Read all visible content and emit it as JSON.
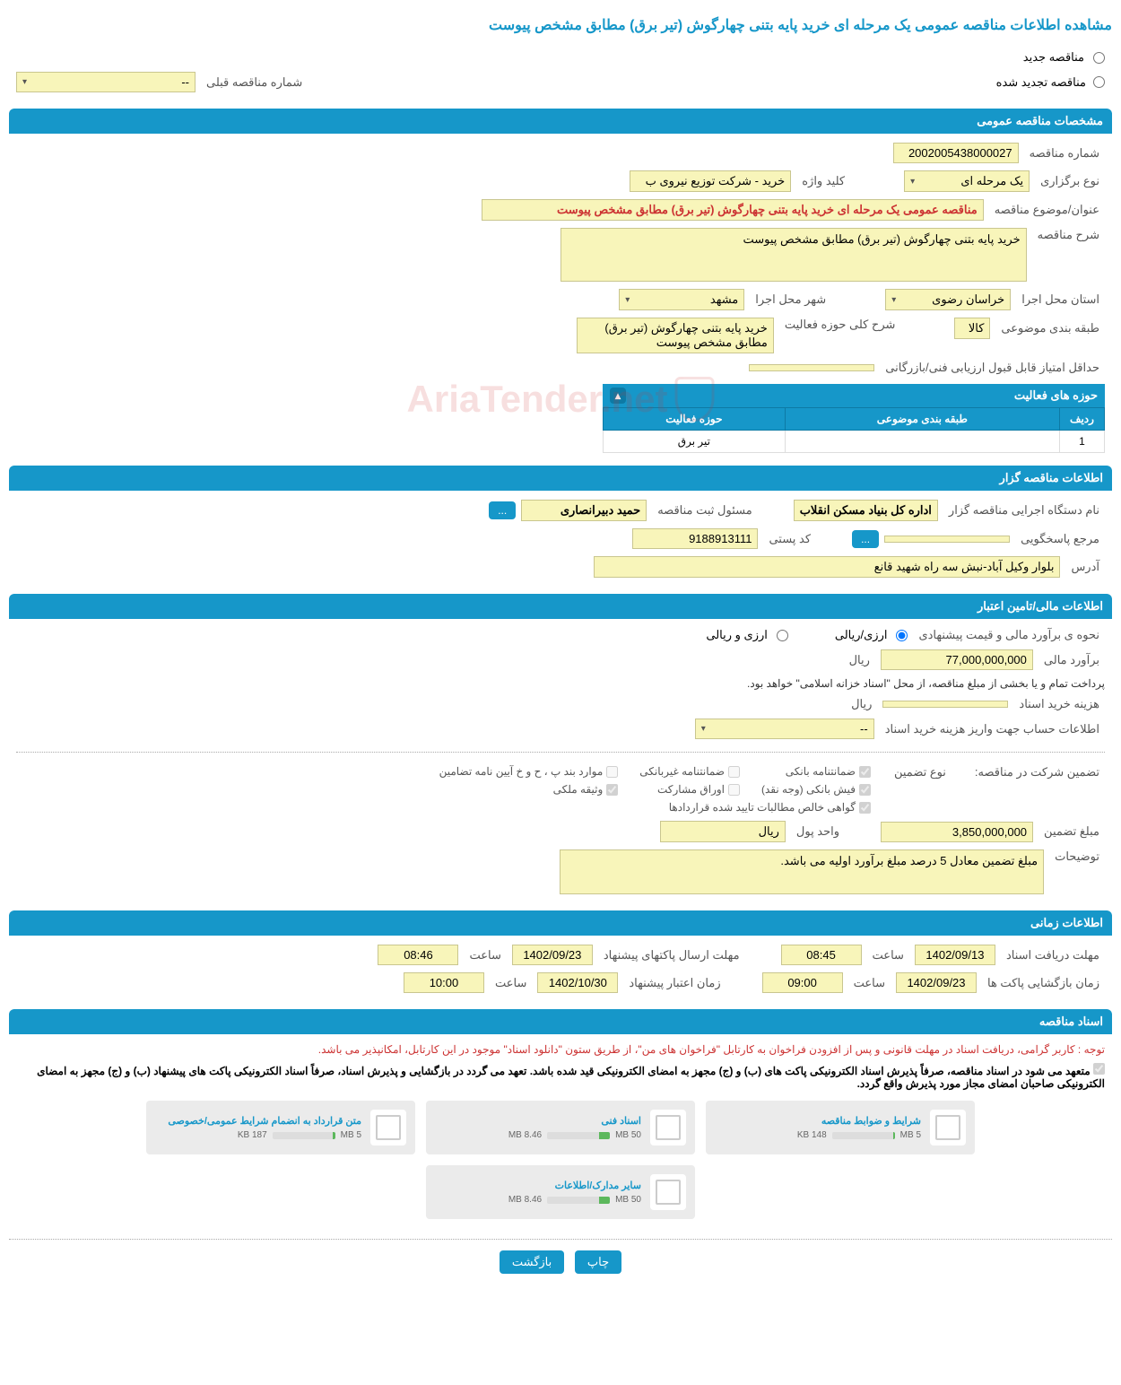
{
  "page_title": "مشاهده اطلاعات مناقصه عمومی یک مرحله ای خرید پایه بتنی چهارگوش (تیر برق) مطابق مشخص پیوست",
  "top_radios": {
    "opt1": "مناقصه جدید",
    "opt2": "مناقصه تجدید شده"
  },
  "prev_number_label": "شماره مناقصه قبلی",
  "prev_number_value": "--",
  "sections": {
    "general": "مشخصات مناقصه عمومی",
    "holder": "اطلاعات مناقصه گزار",
    "financial": "اطلاعات مالی/تامین اعتبار",
    "timing": "اطلاعات زمانی",
    "docs": "اسناد مناقصه"
  },
  "general": {
    "tender_no_label": "شماره مناقصه",
    "tender_no": "2002005438000027",
    "holding_type_label": "نوع برگزاری",
    "holding_type": "یک مرحله ای",
    "keyword_label": "کلید واژه",
    "keyword": "خرید - شرکت توزیع نیروی ب",
    "subject_label": "عنوان/موضوع مناقصه",
    "subject": "مناقصه عمومی یک مرحله ای خرید پایه بتنی چهارگوش (تیر برق) مطابق مشخص پیوست",
    "desc_label": "شرح مناقصه",
    "desc": "خرید پایه بتنی چهارگوش (تیر برق) مطابق مشخص پیوست",
    "province_label": "استان محل اجرا",
    "province": "خراسان رضوی",
    "city_label": "شهر محل اجرا",
    "city": "مشهد",
    "category_label": "طبقه بندی موضوعی",
    "category": "کالا",
    "activity_desc_label": "شرح کلی حوزه فعالیت",
    "activity_desc": "خرید پایه بتنی چهارگوش (تیر برق) مطابق مشخص پیوست",
    "min_score_label": "حداقل امتیاز قابل قبول ارزیابی فنی/بازرگانی",
    "min_score": "",
    "activities_header": "حوزه های فعالیت",
    "tbl_row": "ردیف",
    "tbl_cat": "طبقه بندی موضوعی",
    "tbl_act": "حوزه فعالیت",
    "activities": [
      {
        "row": "1",
        "cat": "",
        "act": "تیر برق"
      }
    ]
  },
  "holder": {
    "exec_label": "نام دستگاه اجرایی مناقصه گزار",
    "exec": "اداره کل بنیاد مسکن انقلاب",
    "reg_label": "مسئول ثبت مناقصه",
    "reg": "حمید دبیرانصاری",
    "more_btn": "...",
    "resp_label": "مرجع پاسخگویی",
    "resp": "",
    "resp_btn": "...",
    "postal_label": "کد پستی",
    "postal": "9188913111",
    "address_label": "آدرس",
    "address": "بلوار وکیل آباد-نبش سه راه شهید قانع"
  },
  "financial": {
    "estimate_method_label": "نحوه ی برآورد مالی و قیمت پیشنهادی",
    "opt_arzi_riali": "ارزی/ریالی",
    "opt_arzi_o_riali": "ارزی و ریالی",
    "estimate_label": "برآورد مالی",
    "estimate": "77,000,000,000",
    "currency": "ریال",
    "payment_note": "پرداخت تمام و یا بخشی از مبلغ مناقصه، از محل \"اسناد خزانه اسلامی\" خواهد بود.",
    "doc_fee_label": "هزینه خرید اسناد",
    "doc_fee": "",
    "doc_fee_unit": "ریال",
    "account_label": "اطلاعات حساب جهت واریز هزینه خرید اسناد",
    "account": "--",
    "guarantee_label": "تضمین شرکت در مناقصه:",
    "guarantee_type_label": "نوع تضمین",
    "chk_bank": "ضمانتنامه بانکی",
    "chk_nonbank": "ضمانتنامه غیربانکی",
    "chk_clauses": "موارد بند پ ، ح و خ آیین نامه تضامین",
    "chk_fish": "فیش بانکی (وجه نقد)",
    "chk_securities": "اوراق مشارکت",
    "chk_property": "وثیقه ملکی",
    "chk_claims": "گواهی خالص مطالبات تایید شده قراردادها",
    "guarantee_amount_label": "مبلغ تضمین",
    "guarantee_amount": "3,850,000,000",
    "unit_label": "واحد پول",
    "unit": "ریال",
    "notes_label": "توضیحات",
    "notes": "مبلغ تضمین معادل 5 درصد مبلغ برآورد اولیه می باشد."
  },
  "timing": {
    "receive_label": "مهلت دریافت اسناد",
    "receive_date": "1402/09/13",
    "receive_time_label": "ساعت",
    "receive_time": "08:45",
    "send_label": "مهلت ارسال پاکتهای پیشنهاد",
    "send_date": "1402/09/23",
    "send_time": "08:46",
    "open_label": "زمان بازگشایی پاکت ها",
    "open_date": "1402/09/23",
    "open_time": "09:00",
    "validity_label": "زمان اعتبار پیشنهاد",
    "validity_date": "1402/10/30",
    "validity_time": "10:00"
  },
  "docs": {
    "notice_red": "توجه : کاربر گرامی، دریافت اسناد در مهلت قانونی و پس از افزودن فراخوان به کارتابل \"فراخوان های من\"، از طریق ستون \"دانلود اسناد\" موجود در این کارتابل، امکانپذیر می باشد.",
    "notice_bold": "متعهد می شود در اسناد مناقصه، صرفاً پذیرش اسناد الکترونیکی پاکت های (ب) و (ج) مجهز به امضای الکترونیکی قید شده باشد. تعهد می گردد در بازگشایی و پذیرش اسناد، صرفاً اسناد الکترونیکی پاکت های پیشنهاد (ب) و (ج) مجهز به امضای الکترونیکی صاحبان امضای مجاز مورد پذیرش واقع گردد.",
    "items": [
      {
        "title": "شرایط و ضوابط مناقصه",
        "used": "148 KB",
        "total": "5 MB",
        "pct": 3
      },
      {
        "title": "اسناد فنی",
        "used": "8.46 MB",
        "total": "50 MB",
        "pct": 17
      },
      {
        "title": "متن قرارداد به انضمام شرایط عمومی/خصوصی",
        "used": "187 KB",
        "total": "5 MB",
        "pct": 4
      },
      {
        "title": "سایر مدارک/اطلاعات",
        "used": "8.46 MB",
        "total": "50 MB",
        "pct": 17
      }
    ]
  },
  "footer": {
    "print": "چاپ",
    "back": "بازگشت"
  },
  "watermark": "AriaTender.net"
}
